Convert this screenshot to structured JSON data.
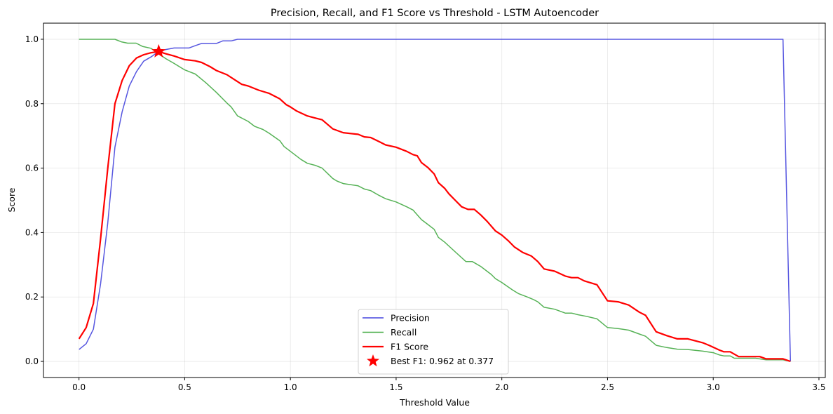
{
  "chart_data": {
    "type": "line",
    "title": "Precision, Recall, and F1 Score vs Threshold - LSTM Autoencoder",
    "xlabel": "Threshold Value",
    "ylabel": "Score",
    "xlim": [
      -0.168,
      3.53
    ],
    "ylim": [
      -0.05,
      1.05
    ],
    "xticks": [
      "0.0",
      "0.5",
      "1.0",
      "1.5",
      "2.0",
      "2.5",
      "3.0",
      "3.5"
    ],
    "yticks": [
      "0.0",
      "0.2",
      "0.4",
      "0.6",
      "0.8",
      "1.0"
    ],
    "grid": true,
    "legend_position": "lower-center",
    "series": [
      {
        "name": "Precision",
        "color": "#4444dd",
        "points": [
          [
            0.0,
            0.037
          ],
          [
            0.034,
            0.055
          ],
          [
            0.068,
            0.1
          ],
          [
            0.102,
            0.24
          ],
          [
            0.136,
            0.43
          ],
          [
            0.17,
            0.665
          ],
          [
            0.204,
            0.775
          ],
          [
            0.238,
            0.855
          ],
          [
            0.272,
            0.9
          ],
          [
            0.306,
            0.932
          ],
          [
            0.34,
            0.945
          ],
          [
            0.377,
            0.962
          ],
          [
            0.41,
            0.968
          ],
          [
            0.45,
            0.973
          ],
          [
            0.5,
            0.973
          ],
          [
            0.52,
            0.973
          ],
          [
            0.55,
            0.98
          ],
          [
            0.58,
            0.987
          ],
          [
            0.65,
            0.987
          ],
          [
            0.68,
            0.995
          ],
          [
            0.72,
            0.995
          ],
          [
            0.75,
            1.0
          ],
          [
            3.33,
            1.0
          ],
          [
            3.365,
            0.0
          ]
        ]
      },
      {
        "name": "Recall",
        "color": "#44aa44",
        "points": [
          [
            0.0,
            1.0
          ],
          [
            0.17,
            1.0
          ],
          [
            0.2,
            0.992
          ],
          [
            0.23,
            0.988
          ],
          [
            0.27,
            0.988
          ],
          [
            0.3,
            0.978
          ],
          [
            0.34,
            0.972
          ],
          [
            0.377,
            0.955
          ],
          [
            0.41,
            0.94
          ],
          [
            0.45,
            0.925
          ],
          [
            0.5,
            0.905
          ],
          [
            0.55,
            0.892
          ],
          [
            0.6,
            0.865
          ],
          [
            0.65,
            0.835
          ],
          [
            0.7,
            0.802
          ],
          [
            0.72,
            0.79
          ],
          [
            0.75,
            0.762
          ],
          [
            0.8,
            0.745
          ],
          [
            0.83,
            0.73
          ],
          [
            0.87,
            0.72
          ],
          [
            0.9,
            0.708
          ],
          [
            0.95,
            0.685
          ],
          [
            0.97,
            0.667
          ],
          [
            1.0,
            0.652
          ],
          [
            1.05,
            0.627
          ],
          [
            1.08,
            0.615
          ],
          [
            1.12,
            0.608
          ],
          [
            1.15,
            0.6
          ],
          [
            1.2,
            0.568
          ],
          [
            1.22,
            0.56
          ],
          [
            1.25,
            0.552
          ],
          [
            1.32,
            0.545
          ],
          [
            1.35,
            0.535
          ],
          [
            1.38,
            0.53
          ],
          [
            1.42,
            0.515
          ],
          [
            1.45,
            0.505
          ],
          [
            1.5,
            0.495
          ],
          [
            1.55,
            0.48
          ],
          [
            1.58,
            0.47
          ],
          [
            1.6,
            0.455
          ],
          [
            1.62,
            0.44
          ],
          [
            1.65,
            0.425
          ],
          [
            1.68,
            0.41
          ],
          [
            1.7,
            0.385
          ],
          [
            1.73,
            0.37
          ],
          [
            1.78,
            0.34
          ],
          [
            1.83,
            0.31
          ],
          [
            1.86,
            0.31
          ],
          [
            1.9,
            0.295
          ],
          [
            1.95,
            0.27
          ],
          [
            1.97,
            0.257
          ],
          [
            2.0,
            0.245
          ],
          [
            2.05,
            0.222
          ],
          [
            2.08,
            0.21
          ],
          [
            2.12,
            0.2
          ],
          [
            2.15,
            0.192
          ],
          [
            2.17,
            0.185
          ],
          [
            2.2,
            0.168
          ],
          [
            2.25,
            0.162
          ],
          [
            2.3,
            0.15
          ],
          [
            2.33,
            0.15
          ],
          [
            2.36,
            0.145
          ],
          [
            2.4,
            0.14
          ],
          [
            2.45,
            0.132
          ],
          [
            2.5,
            0.105
          ],
          [
            2.55,
            0.102
          ],
          [
            2.6,
            0.097
          ],
          [
            2.65,
            0.085
          ],
          [
            2.68,
            0.078
          ],
          [
            2.73,
            0.05
          ],
          [
            2.78,
            0.043
          ],
          [
            2.83,
            0.038
          ],
          [
            2.88,
            0.037
          ],
          [
            2.95,
            0.032
          ],
          [
            3.0,
            0.027
          ],
          [
            3.03,
            0.02
          ],
          [
            3.05,
            0.017
          ],
          [
            3.08,
            0.017
          ],
          [
            3.1,
            0.01
          ],
          [
            3.2,
            0.01
          ],
          [
            3.25,
            0.005
          ],
          [
            3.33,
            0.005
          ],
          [
            3.365,
            0.0
          ]
        ]
      },
      {
        "name": "F1 Score",
        "color": "#ff0000",
        "points": [
          [
            0.0,
            0.07
          ],
          [
            0.034,
            0.105
          ],
          [
            0.068,
            0.18
          ],
          [
            0.102,
            0.38
          ],
          [
            0.136,
            0.6
          ],
          [
            0.17,
            0.8
          ],
          [
            0.204,
            0.872
          ],
          [
            0.238,
            0.918
          ],
          [
            0.272,
            0.942
          ],
          [
            0.306,
            0.952
          ],
          [
            0.34,
            0.958
          ],
          [
            0.377,
            0.962
          ],
          [
            0.41,
            0.955
          ],
          [
            0.45,
            0.948
          ],
          [
            0.5,
            0.937
          ],
          [
            0.55,
            0.933
          ],
          [
            0.58,
            0.928
          ],
          [
            0.62,
            0.915
          ],
          [
            0.65,
            0.903
          ],
          [
            0.7,
            0.89
          ],
          [
            0.73,
            0.877
          ],
          [
            0.77,
            0.86
          ],
          [
            0.8,
            0.855
          ],
          [
            0.85,
            0.842
          ],
          [
            0.9,
            0.832
          ],
          [
            0.95,
            0.815
          ],
          [
            0.98,
            0.797
          ],
          [
            1.0,
            0.79
          ],
          [
            1.03,
            0.777
          ],
          [
            1.08,
            0.762
          ],
          [
            1.12,
            0.755
          ],
          [
            1.15,
            0.75
          ],
          [
            1.2,
            0.722
          ],
          [
            1.25,
            0.71
          ],
          [
            1.32,
            0.705
          ],
          [
            1.35,
            0.697
          ],
          [
            1.38,
            0.695
          ],
          [
            1.42,
            0.682
          ],
          [
            1.45,
            0.672
          ],
          [
            1.5,
            0.665
          ],
          [
            1.55,
            0.652
          ],
          [
            1.58,
            0.642
          ],
          [
            1.6,
            0.638
          ],
          [
            1.62,
            0.617
          ],
          [
            1.65,
            0.602
          ],
          [
            1.68,
            0.582
          ],
          [
            1.7,
            0.555
          ],
          [
            1.73,
            0.537
          ],
          [
            1.75,
            0.52
          ],
          [
            1.78,
            0.5
          ],
          [
            1.81,
            0.48
          ],
          [
            1.84,
            0.472
          ],
          [
            1.87,
            0.472
          ],
          [
            1.9,
            0.455
          ],
          [
            1.93,
            0.435
          ],
          [
            1.97,
            0.405
          ],
          [
            2.0,
            0.392
          ],
          [
            2.03,
            0.375
          ],
          [
            2.06,
            0.355
          ],
          [
            2.1,
            0.338
          ],
          [
            2.14,
            0.327
          ],
          [
            2.17,
            0.31
          ],
          [
            2.2,
            0.287
          ],
          [
            2.25,
            0.28
          ],
          [
            2.3,
            0.265
          ],
          [
            2.33,
            0.26
          ],
          [
            2.36,
            0.26
          ],
          [
            2.39,
            0.25
          ],
          [
            2.45,
            0.238
          ],
          [
            2.5,
            0.188
          ],
          [
            2.55,
            0.185
          ],
          [
            2.6,
            0.175
          ],
          [
            2.65,
            0.153
          ],
          [
            2.68,
            0.143
          ],
          [
            2.73,
            0.092
          ],
          [
            2.78,
            0.08
          ],
          [
            2.83,
            0.07
          ],
          [
            2.88,
            0.07
          ],
          [
            2.95,
            0.058
          ],
          [
            2.98,
            0.05
          ],
          [
            3.03,
            0.035
          ],
          [
            3.05,
            0.03
          ],
          [
            3.08,
            0.03
          ],
          [
            3.12,
            0.015
          ],
          [
            3.22,
            0.015
          ],
          [
            3.25,
            0.008
          ],
          [
            3.33,
            0.008
          ],
          [
            3.365,
            0.0
          ]
        ]
      }
    ],
    "annotations": [
      {
        "type": "marker",
        "shape": "star",
        "color": "#ff0000",
        "x": 0.377,
        "y": 0.962,
        "label": "Best F1: 0.962 at 0.377"
      }
    ],
    "legend": [
      {
        "label": "Precision",
        "style": "line",
        "color": "#4444dd"
      },
      {
        "label": "Recall",
        "style": "line",
        "color": "#44aa44"
      },
      {
        "label": "F1 Score",
        "style": "line",
        "color": "#ff0000"
      },
      {
        "label": "Best F1: 0.962 at 0.377",
        "style": "star",
        "color": "#ff0000"
      }
    ]
  }
}
